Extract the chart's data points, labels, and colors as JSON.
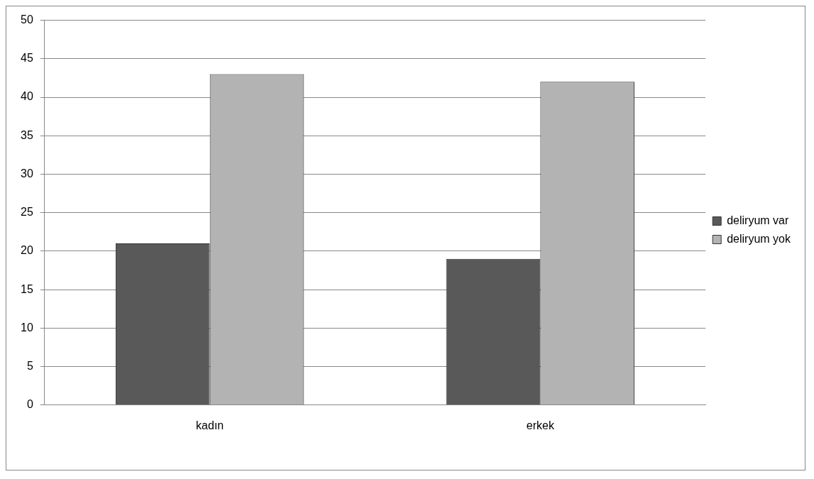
{
  "chart_data": {
    "type": "bar",
    "categories": [
      "kadın",
      "erkek"
    ],
    "series": [
      {
        "name": "deliryum var",
        "color": "#595959",
        "values": [
          21,
          19
        ]
      },
      {
        "name": "deliryum yok",
        "color": "#b3b3b3",
        "values": [
          43,
          42
        ]
      }
    ],
    "ylim": [
      0,
      50
    ],
    "yticks": [
      0,
      5,
      10,
      15,
      20,
      25,
      30,
      35,
      40,
      45,
      50
    ],
    "grid": "y",
    "legend": "right"
  }
}
